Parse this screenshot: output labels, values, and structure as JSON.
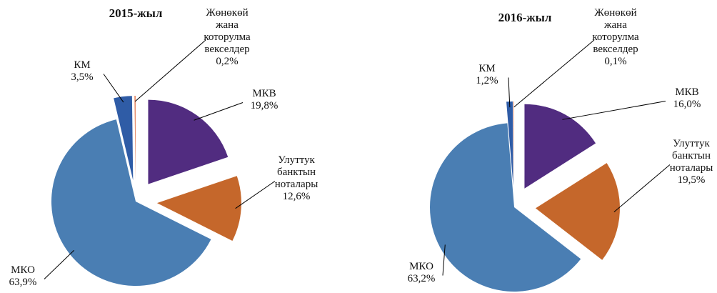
{
  "chart_data": [
    {
      "type": "pie",
      "title": "2015-жыл",
      "categories": [
        "МКВ",
        "Улуттук банктын ноталары",
        "МКО",
        "КМ",
        "Жөнөкөй жана которулма векселдер"
      ],
      "values": [
        19.8,
        12.6,
        63.9,
        3.5,
        0.2
      ],
      "value_labels": [
        "19,8%",
        "12,6%",
        "63,9%",
        "3,5%",
        "0,2%"
      ],
      "colors": [
        "#512c80",
        "#c5672b",
        "#4a7eb3",
        "#2f5ca6",
        "#e0744a"
      ]
    },
    {
      "type": "pie",
      "title": "2016-жыл",
      "categories": [
        "МКВ",
        "Улуттук банктын ноталары",
        "МКО",
        "КМ",
        "Жөнөкөй жана которулма векселдер"
      ],
      "values": [
        16.0,
        19.5,
        63.2,
        1.2,
        0.1
      ],
      "value_labels": [
        "16,0%",
        "19,5%",
        "63,2%",
        "1,2%",
        "0,1%"
      ],
      "colors": [
        "#512c80",
        "#c5672b",
        "#4a7eb3",
        "#2f5ca6",
        "#e0744a"
      ]
    }
  ]
}
